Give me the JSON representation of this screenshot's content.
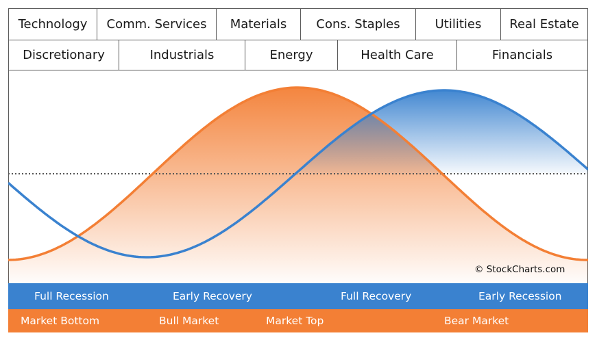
{
  "sectors_top": [
    "Technology",
    "Comm. Services",
    "Materials",
    "Cons. Staples",
    "Utilities",
    "Real Estate"
  ],
  "sectors_bottom": [
    "Discretionary",
    "Industrials",
    "Energy",
    "Health Care",
    "Financials"
  ],
  "credit": "© StockCharts.com",
  "economy_cycle": [
    "Full Recession",
    "Early Recovery",
    "Full Recovery",
    "Early Recession"
  ],
  "market_cycle": [
    "Market Bottom",
    "Bull Market",
    "Market Top",
    "Bear Market"
  ],
  "colors": {
    "economy": "#3a82cf",
    "market": "#f37f35",
    "baseline": "#555555",
    "border": "#5b5b5b"
  },
  "icons": {
    "baseline": "dotted-line"
  }
}
